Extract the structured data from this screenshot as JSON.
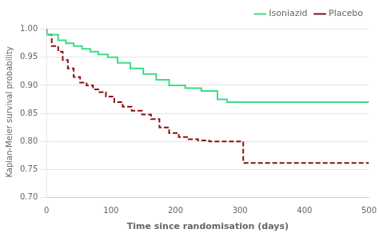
{
  "chart_data": {
    "type": "step",
    "xlabel": "Time since randomisation (days)",
    "ylabel": "Kaplan-Meier survival probability",
    "xlim": [
      0,
      500
    ],
    "ylim": [
      0.7,
      1.005
    ],
    "xticks": [
      0,
      100,
      200,
      300,
      400,
      500
    ],
    "yticks": [
      {
        "value": 0.7,
        "label": "0.70"
      },
      0.75,
      {
        "value": 0.8,
        "label": "0.80"
      },
      0.85,
      {
        "value": 0.9,
        "label": "0.90"
      },
      0.95,
      {
        "value": 1.0,
        "label": "1.00"
      }
    ],
    "grid": "y",
    "legend": "upper right",
    "series": [
      {
        "name": "Isoniazid",
        "color": "#3ddc84",
        "line_style": "solid",
        "x": [
          0,
          18,
          30,
          42,
          55,
          68,
          80,
          95,
          110,
          130,
          150,
          170,
          190,
          215,
          240,
          265,
          280,
          310,
          500
        ],
        "values": [
          1.0,
          0.99,
          0.98,
          0.975,
          0.97,
          0.965,
          0.96,
          0.955,
          0.95,
          0.94,
          0.93,
          0.92,
          0.91,
          0.9,
          0.895,
          0.89,
          0.875,
          0.87,
          0.87
        ]
      },
      {
        "name": "Placebo",
        "color": "#8b1010",
        "line_style": "dashed",
        "x": [
          0,
          8,
          18,
          25,
          33,
          42,
          52,
          62,
          72,
          82,
          92,
          105,
          118,
          132,
          148,
          162,
          175,
          190,
          205,
          220,
          235,
          252,
          270,
          285,
          305,
          320,
          500
        ],
        "values": [
          1.0,
          0.99,
          0.97,
          0.96,
          0.945,
          0.93,
          0.915,
          0.905,
          0.9,
          0.893,
          0.888,
          0.88,
          0.87,
          0.862,
          0.855,
          0.848,
          0.84,
          0.825,
          0.815,
          0.808,
          0.804,
          0.802,
          0.8,
          0.8,
          0.8,
          0.762,
          0.762
        ]
      }
    ]
  }
}
